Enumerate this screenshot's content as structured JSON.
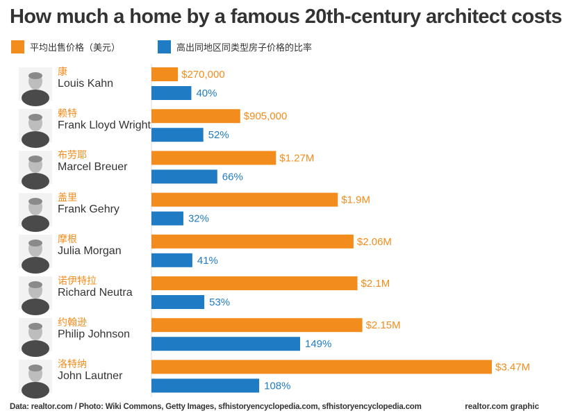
{
  "title": "How much a home by a famous 20th-century architect costs",
  "legend": [
    {
      "label": "平均出售价格（美元）",
      "color": "#f28c1c"
    },
    {
      "label": "高出同地区同类型房子价格的比率",
      "color": "#1f7bc4"
    }
  ],
  "colors": {
    "price": "#f28c1c",
    "ratio": "#1f7bc4"
  },
  "chart_data": {
    "type": "bar",
    "orientation": "horizontal",
    "categories": [
      "Louis Kahn",
      "Frank Lloyd Wright",
      "Marcel Breuer",
      "Frank Gehry",
      "Julia Morgan",
      "Richard Neutra",
      "Philip Johnson",
      "John Lautner"
    ],
    "categories_cn": [
      "康",
      "赖特",
      "布劳耶",
      "盖里",
      "摩根",
      "诺伊特拉",
      "约翰逊",
      "洛特纳"
    ],
    "series": [
      {
        "name": "平均出售价格（美元）",
        "values": [
          270000,
          905000,
          1270000,
          1900000,
          2060000,
          2100000,
          2150000,
          3470000
        ],
        "labels": [
          "$270,000",
          "$905,000",
          "$1.27M",
          "$1.9M",
          "$2.06M",
          "$2.1M",
          "$2.15M",
          "$3.47M"
        ]
      },
      {
        "name": "高出同地区同类型房子价格的比率",
        "values": [
          40,
          52,
          66,
          32,
          41,
          53,
          149,
          108
        ],
        "labels": [
          "40%",
          "52%",
          "66%",
          "32%",
          "41%",
          "53%",
          "149%",
          "108%"
        ]
      }
    ]
  },
  "footer": {
    "source": "Data: realtor.com / Photo: Wiki Commons, Getty Images, sfhistoryencyclopedia.com, sfhistoryencyclopedia.com",
    "credit": "realtor.com graphic"
  }
}
